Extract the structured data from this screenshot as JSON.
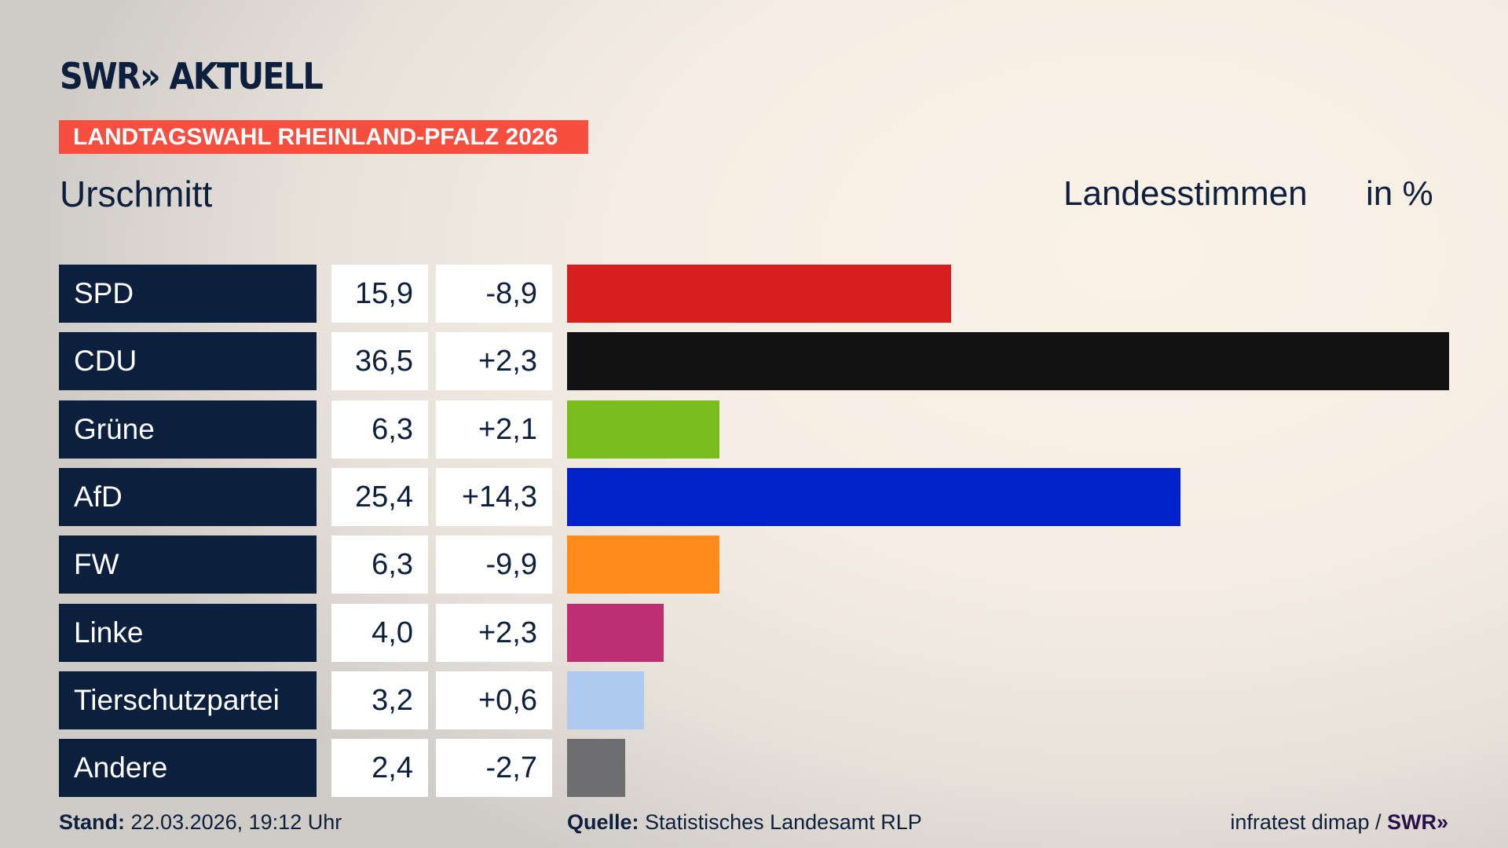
{
  "header": {
    "logo": "SWR» AKTUELL",
    "banner": "LANDTAGSWAHL RHEINLAND-PFALZ 2026",
    "place": "Urschmitt",
    "vote_type": "Landesstimmen",
    "unit": "in %"
  },
  "colors": {
    "navy": "#0c1f3d",
    "banner": "#f64f3f"
  },
  "chart_data": {
    "type": "bar",
    "orientation": "horizontal",
    "categories": [
      "SPD",
      "CDU",
      "Grüne",
      "AfD",
      "FW",
      "Linke",
      "Tierschutzpartei",
      "Andere"
    ],
    "values": [
      15.9,
      36.5,
      6.3,
      25.4,
      6.3,
      4.0,
      3.2,
      2.4
    ],
    "value_labels": [
      "15,9",
      "36,5",
      "6,3",
      "25,4",
      "6,3",
      "4,0",
      "3,2",
      "2,4"
    ],
    "diff_labels": [
      "-8,9",
      "+2,3",
      "+2,1",
      "+14,3",
      "-9,9",
      "+2,3",
      "+0,6",
      "-2,7"
    ],
    "colors": [
      "#d81f20",
      "#121212",
      "#79bd1d",
      "#0022c8",
      "#ff8c1a",
      "#bd2f73",
      "#aecbef",
      "#6e6e70"
    ],
    "unit": "%"
  },
  "footer": {
    "stand_label": "Stand:",
    "stand_value": "22.03.2026, 19:12 Uhr",
    "source_label": "Quelle:",
    "source_value": "Statistisches Landesamt RLP",
    "credit": "infratest dimap /",
    "credit_logo": "SWR»"
  }
}
